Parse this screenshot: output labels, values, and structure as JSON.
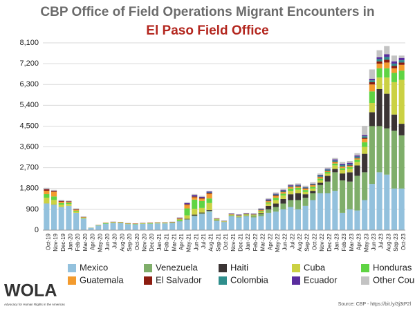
{
  "chart_data": {
    "type": "stacked_bar",
    "title": "CBP Office of Field Operations Migrant Encounters in",
    "subtitle": "El Paso Field Office",
    "categories": [
      "Oct-19",
      "Nov-19",
      "Dec-19",
      "Jan-20",
      "Feb-20",
      "Mar-20",
      "Apr-20",
      "May-20",
      "Jun-20",
      "Jul-20",
      "Aug-20",
      "Sep-20",
      "Oct-20",
      "Nov-20",
      "Dec-20",
      "Jan-21",
      "Feb-21",
      "Mar-21",
      "Apr-21",
      "May-21",
      "Jun-21",
      "Jul-21",
      "Aug-21",
      "Sep-21",
      "Oct-21",
      "Nov-21",
      "Dec-21",
      "Jan-22",
      "Feb-22",
      "Mar-22",
      "Apr-22",
      "May-22",
      "Jun-22",
      "Jul-22",
      "Aug-22",
      "Sep-22",
      "Oct-22",
      "Nov-22",
      "Dec-22",
      "Jan-23",
      "Feb-23",
      "Mar-23",
      "Apr-23",
      "May-23",
      "Jun-23",
      "Jul-23",
      "Aug-23",
      "Sep-23",
      "Oct-23"
    ],
    "series": [
      {
        "name": "Mexico",
        "color": "#93c1dd",
        "values": [
          1150,
          1100,
          1000,
          1050,
          750,
          500,
          100,
          200,
          280,
          310,
          300,
          260,
          250,
          270,
          280,
          290,
          290,
          300,
          380,
          450,
          600,
          700,
          800,
          400,
          350,
          600,
          550,
          600,
          550,
          600,
          750,
          800,
          900,
          1000,
          900,
          1050,
          1300,
          1600,
          1600,
          1700,
          750,
          900,
          850,
          1300,
          2000,
          2500,
          2400,
          1800,
          1800
        ]
      },
      {
        "name": "Venezuela",
        "color": "#7fae6a",
        "values": [
          0,
          0,
          0,
          0,
          0,
          0,
          0,
          0,
          0,
          0,
          0,
          0,
          0,
          0,
          0,
          0,
          0,
          0,
          5,
          20,
          30,
          30,
          40,
          20,
          10,
          20,
          20,
          30,
          50,
          100,
          150,
          200,
          250,
          300,
          400,
          350,
          300,
          350,
          500,
          800,
          1400,
          1200,
          1500,
          1200,
          2500,
          2000,
          2000,
          2500,
          2300
        ]
      },
      {
        "name": "Haiti",
        "color": "#3b3434",
        "values": [
          5,
          5,
          0,
          0,
          0,
          0,
          0,
          0,
          0,
          0,
          0,
          0,
          0,
          0,
          0,
          0,
          0,
          0,
          5,
          20,
          40,
          30,
          30,
          10,
          5,
          5,
          5,
          5,
          10,
          40,
          150,
          150,
          200,
          250,
          300,
          150,
          100,
          100,
          250,
          150,
          300,
          400,
          450,
          800,
          600,
          1600,
          1500,
          700,
          500
        ]
      },
      {
        "name": "Cuba",
        "color": "#cbd143",
        "values": [
          250,
          200,
          100,
          80,
          50,
          20,
          0,
          0,
          0,
          5,
          5,
          5,
          5,
          5,
          5,
          5,
          5,
          5,
          10,
          150,
          250,
          200,
          300,
          20,
          5,
          20,
          20,
          20,
          20,
          40,
          100,
          150,
          150,
          150,
          150,
          100,
          100,
          100,
          100,
          150,
          150,
          150,
          150,
          300,
          400,
          500,
          700,
          1400,
          1900
        ]
      },
      {
        "name": "Honduras",
        "color": "#5fd443",
        "values": [
          150,
          150,
          70,
          50,
          40,
          20,
          5,
          10,
          20,
          20,
          20,
          15,
          15,
          15,
          15,
          15,
          15,
          20,
          60,
          300,
          400,
          300,
          200,
          20,
          10,
          20,
          20,
          20,
          20,
          40,
          50,
          100,
          80,
          100,
          80,
          80,
          80,
          80,
          60,
          80,
          80,
          80,
          100,
          200,
          500,
          400,
          400,
          400,
          400
        ]
      },
      {
        "name": "Guatemala",
        "color": "#f39b2e",
        "values": [
          150,
          200,
          60,
          40,
          40,
          20,
          5,
          10,
          20,
          20,
          20,
          15,
          15,
          15,
          20,
          20,
          20,
          20,
          40,
          150,
          100,
          100,
          200,
          20,
          10,
          20,
          20,
          20,
          20,
          40,
          50,
          80,
          60,
          60,
          50,
          60,
          60,
          60,
          40,
          60,
          60,
          50,
          50,
          150,
          300,
          200,
          250,
          200,
          250
        ]
      },
      {
        "name": "El Salvador",
        "color": "#8c1c10",
        "values": [
          60,
          40,
          30,
          20,
          20,
          10,
          0,
          5,
          5,
          5,
          5,
          5,
          5,
          5,
          5,
          5,
          5,
          5,
          10,
          30,
          30,
          30,
          40,
          10,
          5,
          10,
          10,
          10,
          10,
          20,
          20,
          30,
          20,
          20,
          20,
          20,
          20,
          20,
          20,
          20,
          20,
          20,
          20,
          40,
          100,
          100,
          120,
          100,
          100
        ]
      },
      {
        "name": "Colombia",
        "color": "#2f8e8c",
        "values": [
          5,
          5,
          5,
          5,
          5,
          0,
          0,
          0,
          0,
          0,
          0,
          0,
          0,
          0,
          0,
          0,
          0,
          0,
          5,
          10,
          10,
          10,
          20,
          5,
          5,
          5,
          5,
          5,
          10,
          20,
          30,
          30,
          50,
          30,
          30,
          30,
          30,
          50,
          50,
          50,
          60,
          60,
          60,
          70,
          80,
          100,
          120,
          100,
          100
        ]
      },
      {
        "name": "Ecuador",
        "color": "#5a2d9e",
        "values": [
          10,
          10,
          10,
          5,
          5,
          5,
          0,
          0,
          0,
          5,
          5,
          5,
          5,
          5,
          5,
          5,
          5,
          10,
          20,
          40,
          60,
          40,
          40,
          10,
          10,
          20,
          20,
          20,
          20,
          20,
          30,
          30,
          30,
          30,
          30,
          20,
          20,
          30,
          30,
          50,
          50,
          50,
          50,
          50,
          70,
          80,
          120,
          100,
          100
        ]
      },
      {
        "name": "Other Countries",
        "color": "#c3c3c3",
        "values": [
          50,
          30,
          30,
          30,
          30,
          20,
          5,
          5,
          5,
          5,
          5,
          5,
          5,
          5,
          5,
          5,
          5,
          10,
          20,
          40,
          40,
          40,
          30,
          10,
          10,
          20,
          20,
          20,
          20,
          30,
          50,
          60,
          50,
          60,
          60,
          60,
          60,
          60,
          60,
          60,
          80,
          80,
          100,
          400,
          400,
          300,
          350,
          250,
          100
        ]
      }
    ],
    "ylim": [
      0,
      8100
    ],
    "yticks": [
      0,
      900,
      {
        "value": 1800,
        "label": "1,800"
      },
      {
        "value": 2700,
        "label": "2,700"
      },
      {
        "value": 3600,
        "label": "3,600"
      },
      {
        "value": 4500,
        "label": "4,500"
      },
      {
        "value": 5400,
        "label": "5,400"
      },
      {
        "value": 6300,
        "label": "6,300"
      },
      {
        "value": 7200,
        "label": "7,200"
      },
      {
        "value": 8100,
        "label": "8,100"
      }
    ],
    "grid": true,
    "legend_position": "bottom",
    "logo": {
      "name": "WOLA",
      "tagline": "Advocacy for Human Rights in the Americas"
    },
    "source": "Source: CBP - https://bit.ly/3j3tP2l"
  }
}
